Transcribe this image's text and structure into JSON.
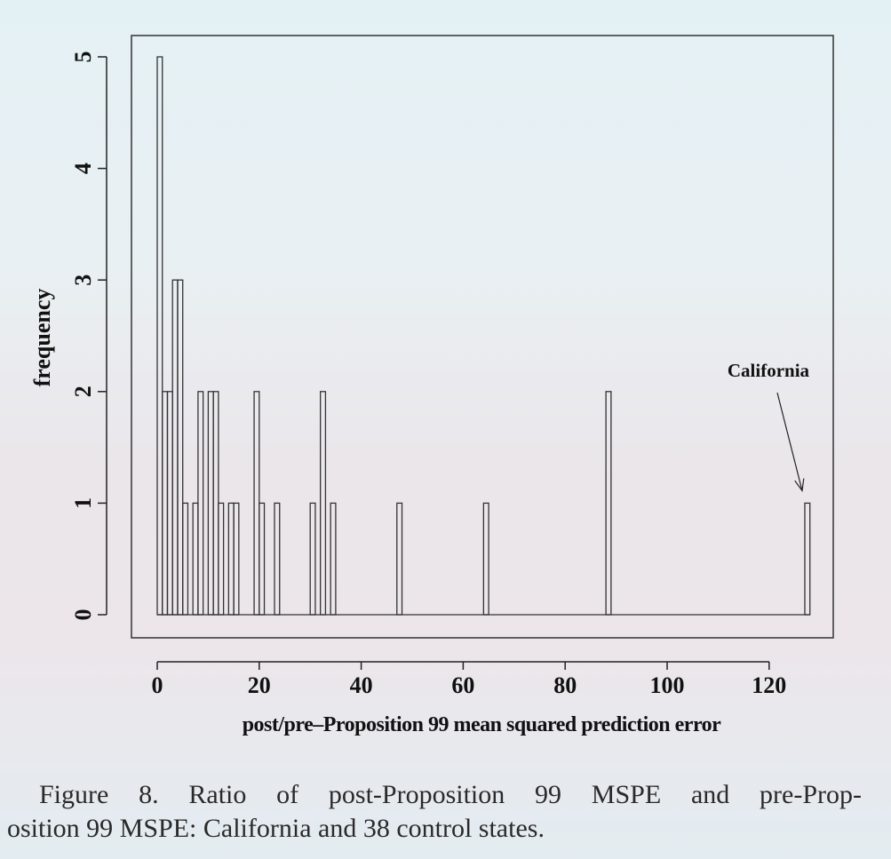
{
  "chart_data": {
    "type": "bar",
    "title": "",
    "xlabel": "post/pre–Proposition 99 mean squared prediction error",
    "ylabel": "frequency",
    "xlim": [
      0,
      130
    ],
    "ylim": [
      0,
      5
    ],
    "xticks": [
      0,
      20,
      40,
      60,
      80,
      100,
      120
    ],
    "yticks": [
      0,
      1,
      2,
      3,
      4,
      5
    ],
    "bin_width": 1,
    "grid": false,
    "bins": [
      {
        "x": 0,
        "count": 5
      },
      {
        "x": 1,
        "count": 2
      },
      {
        "x": 2,
        "count": 2
      },
      {
        "x": 3,
        "count": 3
      },
      {
        "x": 4,
        "count": 3
      },
      {
        "x": 5,
        "count": 1
      },
      {
        "x": 7,
        "count": 1
      },
      {
        "x": 8,
        "count": 2
      },
      {
        "x": 10,
        "count": 2
      },
      {
        "x": 11,
        "count": 2
      },
      {
        "x": 12,
        "count": 1
      },
      {
        "x": 14,
        "count": 1
      },
      {
        "x": 15,
        "count": 1
      },
      {
        "x": 19,
        "count": 2
      },
      {
        "x": 20,
        "count": 1
      },
      {
        "x": 23,
        "count": 1
      },
      {
        "x": 30,
        "count": 1
      },
      {
        "x": 32,
        "count": 2
      },
      {
        "x": 34,
        "count": 1
      },
      {
        "x": 47,
        "count": 1
      },
      {
        "x": 64,
        "count": 1
      },
      {
        "x": 88,
        "count": 2
      },
      {
        "x": 127,
        "count": 1
      }
    ],
    "annotations": [
      {
        "text": "California",
        "x": 127,
        "y": 1
      }
    ]
  },
  "caption": {
    "line1": "Figure 8. Ratio of post-Proposition 99 MSPE and pre-Prop-",
    "line2": "osition 99 MSPE: California and 38 control states."
  }
}
